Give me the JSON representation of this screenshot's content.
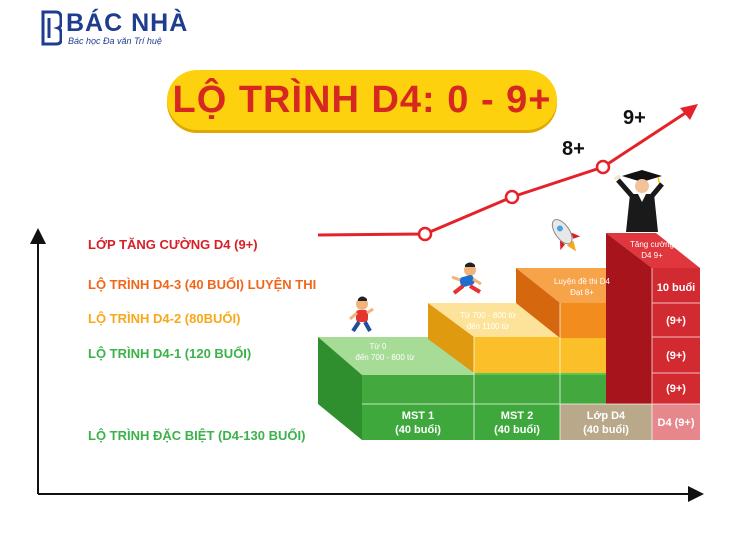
{
  "brand": {
    "name": "BÁC NHÀ",
    "tagline": "Bác học Đa văn Trí huệ",
    "color": "#1f3d8f"
  },
  "title": "LỘ TRÌNH D4: 0 - 9+",
  "levels": [
    {
      "label": "LỚP TĂNG CƯỜNG D4 (9+)",
      "color": "#d61f26"
    },
    {
      "label": "LỘ TRÌNH D4-3 (40 BUỔI) LUYỆN THI",
      "color": "#f2661c"
    },
    {
      "label": "LỘ TRÌNH D4-2 (80BUỔI)",
      "color": "#f7a81b"
    },
    {
      "label": "LỘ TRÌNH D4-1 (120 BUỔI)",
      "color": "#3bb24a"
    },
    {
      "label": "LỘ TRÌNH ĐẶC BIỆT (D4-130 BUỔI)",
      "color": "#3bb24a"
    }
  ],
  "milestones": {
    "score_8": "8+",
    "score_9": "9+"
  },
  "steps": {
    "green_top_l1": "Từ 0",
    "green_top_l2": "đến 700 - 800 từ",
    "yellow_top_l1": "Từ 700 - 800 từ",
    "yellow_top_l2": "đến 1100 từ",
    "orange_top_l1": "Luyện đề thi D4",
    "orange_top_l2": "Đạt 8+",
    "red_top_l1": "Tăng cường",
    "red_top_l2": "D4 9+",
    "red_10": "10 buổi",
    "red_9a": "(9+)",
    "red_9b": "(9+)",
    "red_9c": "(9+)"
  },
  "bottom_row": [
    {
      "l1": "MST 1",
      "l2": "(40 buổi)"
    },
    {
      "l1": "MST 2",
      "l2": "(40 buổi)"
    },
    {
      "l1": "Lớp D4",
      "l2": "(40 buổi)"
    },
    {
      "l1": "D4 (9+)",
      "l2": ""
    }
  ],
  "colors": {
    "red": "#d61f26",
    "orange": "#f28c1e",
    "yellow": "#fbc02d",
    "green": "#4cb848",
    "title_bg": "#fdd10e"
  }
}
